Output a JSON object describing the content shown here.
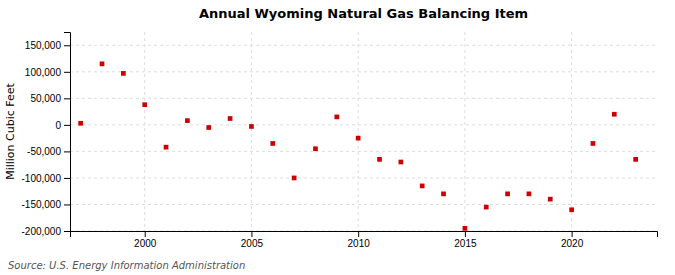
{
  "chart_data": {
    "type": "scatter",
    "title": "Annual Wyoming Natural Gas Balancing Item",
    "ylabel": "Million Cubic Feet",
    "source": "Source: U.S. Energy Information Administration",
    "color": "#cc0000",
    "marker": "square",
    "grid": true,
    "x": [
      1997,
      1998,
      1999,
      2000,
      2001,
      2002,
      2003,
      2004,
      2005,
      2006,
      2007,
      2008,
      2009,
      2010,
      2011,
      2012,
      2013,
      2014,
      2015,
      2016,
      2017,
      2018,
      2019,
      2020,
      2021,
      2022,
      2023
    ],
    "values": [
      3000,
      115000,
      97000,
      38000,
      -42000,
      8000,
      -5000,
      12000,
      -3000,
      -35000,
      -100000,
      -45000,
      15000,
      -25000,
      -65000,
      -70000,
      -115000,
      -130000,
      -195000,
      -155000,
      -130000,
      -130000,
      -140000,
      -160000,
      -35000,
      20000,
      -65000
    ],
    "xlim": [
      1996.5,
      2024
    ],
    "xticks": [
      2000,
      2005,
      2010,
      2015,
      2020
    ],
    "ylim": [
      -200000,
      175000
    ],
    "yticks": [
      {
        "value": -200000,
        "label": "-200,000"
      },
      {
        "value": -150000,
        "label": "-150,000"
      },
      {
        "value": -100000,
        "label": "-100,000"
      },
      {
        "value": -50000,
        "label": "-50,000"
      },
      0,
      {
        "value": 50000,
        "label": "50,000"
      },
      {
        "value": 100000,
        "label": "100,000"
      },
      {
        "value": 150000,
        "label": "150,000"
      }
    ]
  }
}
